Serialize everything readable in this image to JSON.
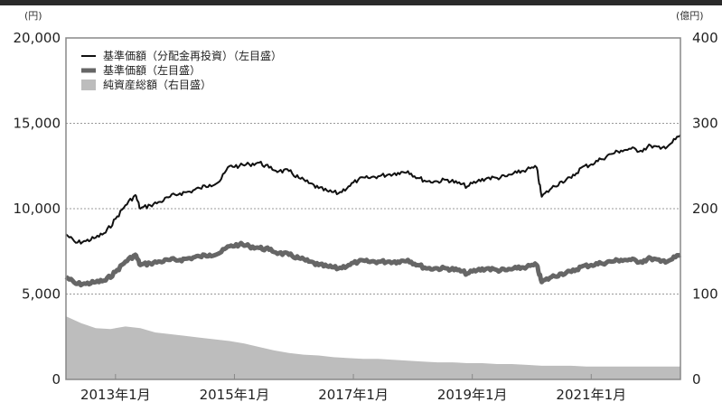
{
  "chart_data": {
    "type": "line",
    "title": "",
    "y_left": {
      "unit": "(円)",
      "range": [
        0,
        20000
      ],
      "ticks": [
        0,
        5000,
        10000,
        15000,
        20000
      ],
      "tick_labels": [
        "0",
        "5,000",
        "10,000",
        "15,000",
        "20,000"
      ]
    },
    "y_right": {
      "unit": "(億円)",
      "range": [
        0,
        400
      ],
      "ticks": [
        0,
        100,
        200,
        300,
        400
      ],
      "tick_labels": [
        "0",
        "100",
        "200",
        "300",
        "400"
      ]
    },
    "x_axis": {
      "range": [
        "2012-03",
        "2022-07"
      ],
      "ticks": [
        "2013-01",
        "2015-01",
        "2017-01",
        "2019-01",
        "2021-01"
      ],
      "tick_labels": [
        "2013年1月",
        "2015年1月",
        "2017年1月",
        "2019年1月",
        "2021年1月"
      ]
    },
    "grid": "horizontal-dotted",
    "legend_position": "top-left",
    "series": [
      {
        "name": "基準価額（分配金再投資）（左目盛）",
        "axis": "left",
        "kind": "line",
        "color": "#111111",
        "points": [
          [
            "2012-03",
            8500
          ],
          [
            "2012-05",
            8000
          ],
          [
            "2012-07",
            8100
          ],
          [
            "2012-09",
            8300
          ],
          [
            "2012-11",
            8600
          ],
          [
            "2013-01",
            9400
          ],
          [
            "2013-03",
            10200
          ],
          [
            "2013-05",
            10800
          ],
          [
            "2013-06",
            10000
          ],
          [
            "2013-08",
            10200
          ],
          [
            "2013-10",
            10400
          ],
          [
            "2013-12",
            10700
          ],
          [
            "2014-02",
            10900
          ],
          [
            "2014-04",
            11000
          ],
          [
            "2014-06",
            11200
          ],
          [
            "2014-08",
            11400
          ],
          [
            "2014-10",
            11600
          ],
          [
            "2014-12",
            12500
          ],
          [
            "2015-02",
            12500
          ],
          [
            "2015-04",
            12600
          ],
          [
            "2015-06",
            12700
          ],
          [
            "2015-08",
            12400
          ],
          [
            "2015-10",
            12200
          ],
          [
            "2015-12",
            12200
          ],
          [
            "2016-02",
            11800
          ],
          [
            "2016-04",
            11500
          ],
          [
            "2016-06",
            11200
          ],
          [
            "2016-08",
            11000
          ],
          [
            "2016-10",
            10900
          ],
          [
            "2016-12",
            11300
          ],
          [
            "2017-02",
            11700
          ],
          [
            "2017-04",
            11800
          ],
          [
            "2017-06",
            11900
          ],
          [
            "2017-08",
            12000
          ],
          [
            "2017-10",
            12100
          ],
          [
            "2017-12",
            12200
          ],
          [
            "2018-02",
            11800
          ],
          [
            "2018-04",
            11600
          ],
          [
            "2018-06",
            11600
          ],
          [
            "2018-08",
            11700
          ],
          [
            "2018-10",
            11500
          ],
          [
            "2018-12",
            11300
          ],
          [
            "2019-02",
            11600
          ],
          [
            "2019-04",
            11800
          ],
          [
            "2019-06",
            11800
          ],
          [
            "2019-08",
            11900
          ],
          [
            "2019-10",
            12100
          ],
          [
            "2019-12",
            12300
          ],
          [
            "2020-02",
            12400
          ],
          [
            "2020-03",
            10700
          ],
          [
            "2020-05",
            11200
          ],
          [
            "2020-07",
            11600
          ],
          [
            "2020-09",
            11800
          ],
          [
            "2020-11",
            12400
          ],
          [
            "2021-01",
            12600
          ],
          [
            "2021-03",
            12900
          ],
          [
            "2021-05",
            13200
          ],
          [
            "2021-07",
            13400
          ],
          [
            "2021-09",
            13500
          ],
          [
            "2021-11",
            13400
          ],
          [
            "2022-01",
            13700
          ],
          [
            "2022-03",
            13500
          ],
          [
            "2022-05",
            13800
          ],
          [
            "2022-07",
            14300
          ]
        ]
      },
      {
        "name": "基準価額（左目盛）",
        "axis": "left",
        "kind": "line-thick",
        "color": "#666666",
        "points": [
          [
            "2012-03",
            6000
          ],
          [
            "2012-05",
            5600
          ],
          [
            "2012-07",
            5600
          ],
          [
            "2012-09",
            5700
          ],
          [
            "2012-11",
            5800
          ],
          [
            "2013-01",
            6300
          ],
          [
            "2013-03",
            6900
          ],
          [
            "2013-05",
            7300
          ],
          [
            "2013-06",
            6700
          ],
          [
            "2013-08",
            6800
          ],
          [
            "2013-10",
            6900
          ],
          [
            "2013-12",
            7000
          ],
          [
            "2014-02",
            7000
          ],
          [
            "2014-04",
            7100
          ],
          [
            "2014-06",
            7200
          ],
          [
            "2014-08",
            7300
          ],
          [
            "2014-10",
            7400
          ],
          [
            "2014-12",
            7800
          ],
          [
            "2015-02",
            7900
          ],
          [
            "2015-04",
            7800
          ],
          [
            "2015-06",
            7700
          ],
          [
            "2015-08",
            7600
          ],
          [
            "2015-10",
            7400
          ],
          [
            "2015-12",
            7300
          ],
          [
            "2016-02",
            7100
          ],
          [
            "2016-04",
            6900
          ],
          [
            "2016-06",
            6700
          ],
          [
            "2016-08",
            6600
          ],
          [
            "2016-10",
            6500
          ],
          [
            "2016-12",
            6700
          ],
          [
            "2017-02",
            6900
          ],
          [
            "2017-04",
            6900
          ],
          [
            "2017-06",
            6900
          ],
          [
            "2017-08",
            6900
          ],
          [
            "2017-10",
            6900
          ],
          [
            "2017-12",
            7000
          ],
          [
            "2018-02",
            6700
          ],
          [
            "2018-04",
            6500
          ],
          [
            "2018-06",
            6500
          ],
          [
            "2018-08",
            6500
          ],
          [
            "2018-10",
            6400
          ],
          [
            "2018-12",
            6200
          ],
          [
            "2019-02",
            6400
          ],
          [
            "2019-04",
            6500
          ],
          [
            "2019-06",
            6400
          ],
          [
            "2019-08",
            6400
          ],
          [
            "2019-10",
            6500
          ],
          [
            "2019-12",
            6600
          ],
          [
            "2020-02",
            6700
          ],
          [
            "2020-03",
            5700
          ],
          [
            "2020-05",
            6000
          ],
          [
            "2020-07",
            6200
          ],
          [
            "2020-09",
            6300
          ],
          [
            "2020-11",
            6600
          ],
          [
            "2021-01",
            6700
          ],
          [
            "2021-03",
            6800
          ],
          [
            "2021-05",
            6900
          ],
          [
            "2021-07",
            7000
          ],
          [
            "2021-09",
            7000
          ],
          [
            "2021-11",
            6900
          ],
          [
            "2022-01",
            7100
          ],
          [
            "2022-03",
            6900
          ],
          [
            "2022-05",
            7000
          ],
          [
            "2022-07",
            7300
          ]
        ]
      },
      {
        "name": "純資産総額（右目盛）",
        "axis": "right",
        "kind": "area",
        "color": "#bdbdbd",
        "points": [
          [
            "2012-03",
            74
          ],
          [
            "2012-06",
            66
          ],
          [
            "2012-09",
            60
          ],
          [
            "2012-12",
            59
          ],
          [
            "2013-03",
            62
          ],
          [
            "2013-06",
            60
          ],
          [
            "2013-09",
            55
          ],
          [
            "2013-12",
            53
          ],
          [
            "2014-03",
            51
          ],
          [
            "2014-06",
            49
          ],
          [
            "2014-09",
            47
          ],
          [
            "2014-12",
            45
          ],
          [
            "2015-03",
            42
          ],
          [
            "2015-06",
            38
          ],
          [
            "2015-09",
            34
          ],
          [
            "2015-12",
            31
          ],
          [
            "2016-03",
            29
          ],
          [
            "2016-06",
            28
          ],
          [
            "2016-09",
            26
          ],
          [
            "2016-12",
            25
          ],
          [
            "2017-03",
            24
          ],
          [
            "2017-06",
            24
          ],
          [
            "2017-09",
            23
          ],
          [
            "2017-12",
            22
          ],
          [
            "2018-03",
            21
          ],
          [
            "2018-06",
            20
          ],
          [
            "2018-09",
            20
          ],
          [
            "2018-12",
            19
          ],
          [
            "2019-03",
            19
          ],
          [
            "2019-06",
            18
          ],
          [
            "2019-09",
            18
          ],
          [
            "2019-12",
            17
          ],
          [
            "2020-03",
            16
          ],
          [
            "2020-06",
            16
          ],
          [
            "2020-09",
            16
          ],
          [
            "2020-12",
            15
          ],
          [
            "2021-03",
            15
          ],
          [
            "2021-06",
            15
          ],
          [
            "2021-09",
            15
          ],
          [
            "2021-12",
            15
          ],
          [
            "2022-03",
            15
          ],
          [
            "2022-07",
            15
          ]
        ]
      }
    ]
  },
  "colors": {
    "dark_line": "#111111",
    "gray_line": "#666666",
    "area_fill": "#bdbdbd",
    "axis_frame": "#888888",
    "grid": "#999999",
    "top_band": "#2a2a2a"
  }
}
